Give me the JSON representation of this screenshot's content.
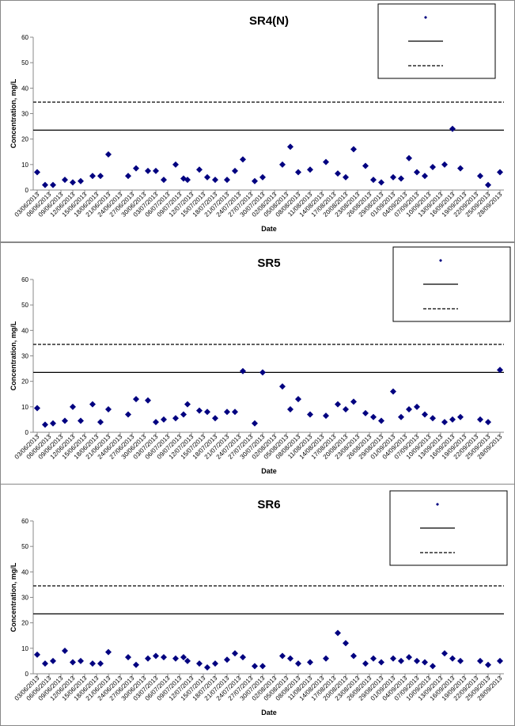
{
  "chart_data": [
    {
      "type": "scatter",
      "title": "SR4(N)",
      "x_label": "Date",
      "y_label": "Concentration, mg/L",
      "color": "#000080",
      "xlim": [
        "02/06/2013",
        "29/09/2013"
      ],
      "ylim": [
        0,
        60
      ],
      "yticks": [
        0,
        10,
        20,
        30,
        40,
        50,
        60
      ],
      "xticks": [
        "03/06/2013",
        "06/06/2013",
        "09/06/2013",
        "12/06/2013",
        "15/06/2013",
        "18/06/2013",
        "21/06/2013",
        "24/06/2013",
        "27/06/2013",
        "30/06/2013",
        "03/07/2013",
        "06/07/2013",
        "09/07/2013",
        "12/07/2013",
        "15/07/2013",
        "18/07/2013",
        "21/07/2013",
        "24/07/2013",
        "27/07/2013",
        "30/07/2013",
        "02/08/2013",
        "05/08/2013",
        "08/08/2013",
        "11/08/2013",
        "14/08/2013",
        "17/08/2013",
        "20/08/2013",
        "23/08/2013",
        "26/08/2013",
        "29/08/2013",
        "01/09/2013",
        "04/09/2013",
        "07/09/2013",
        "10/09/2013",
        "13/09/2013",
        "16/09/2013",
        "19/09/2013",
        "22/09/2013",
        "25/09/2013",
        "28/09/2013"
      ],
      "reference_lines": [
        {
          "value": 23.5,
          "style": "solid"
        },
        {
          "value": 34.5,
          "style": "dashed"
        }
      ],
      "x": [
        "03/06/2013",
        "05/06/2013",
        "07/06/2013",
        "10/06/2013",
        "12/06/2013",
        "14/06/2013",
        "17/06/2013",
        "19/06/2013",
        "21/06/2013",
        "26/06/2013",
        "28/06/2013",
        "01/07/2013",
        "03/07/2013",
        "05/07/2013",
        "08/07/2013",
        "10/07/2013",
        "11/07/2013",
        "14/07/2013",
        "16/07/2013",
        "18/07/2013",
        "21/07/2013",
        "23/07/2013",
        "25/07/2013",
        "28/07/2013",
        "30/07/2013",
        "04/08/2013",
        "06/08/2013",
        "08/08/2013",
        "11/08/2013",
        "15/08/2013",
        "18/08/2013",
        "20/08/2013",
        "22/08/2013",
        "25/08/2013",
        "27/08/2013",
        "29/08/2013",
        "01/09/2013",
        "03/09/2013",
        "05/09/2013",
        "07/09/2013",
        "09/09/2013",
        "11/09/2013",
        "14/09/2013",
        "16/09/2013",
        "18/09/2013",
        "23/09/2013",
        "25/09/2013",
        "28/09/2013"
      ],
      "values": [
        7,
        2,
        2,
        4,
        3,
        3.5,
        5.5,
        5.5,
        14,
        5.5,
        8.5,
        7.5,
        7.5,
        4,
        10,
        4.5,
        4,
        8,
        5,
        4,
        4,
        7.5,
        12,
        3.5,
        5,
        10,
        17,
        7,
        8,
        11,
        6.5,
        5,
        16,
        9.5,
        4,
        3,
        5,
        4.5,
        12.5,
        7,
        5.5,
        9,
        10,
        24,
        8.5,
        5.5,
        2,
        7
      ]
    },
    {
      "type": "scatter",
      "title": "SR5",
      "x_label": "Date",
      "y_label": "Concentration, mg/L",
      "color": "#000080",
      "xlim": [
        "02/06/2013",
        "29/09/2013"
      ],
      "ylim": [
        0,
        60
      ],
      "yticks": [
        0,
        10,
        20,
        30,
        40,
        50,
        60
      ],
      "xticks": [
        "03/06/2013",
        "06/06/2013",
        "09/06/2013",
        "12/06/2013",
        "15/06/2013",
        "18/06/2013",
        "21/06/2013",
        "24/06/2013",
        "27/06/2013",
        "30/06/2013",
        "03/07/2013",
        "06/07/2013",
        "09/07/2013",
        "12/07/2013",
        "15/07/2013",
        "18/07/2013",
        "21/07/2013",
        "24/07/2013",
        "27/07/2013",
        "30/07/2013",
        "02/08/2013",
        "05/08/2013",
        "08/08/2013",
        "11/08/2013",
        "14/08/2013",
        "17/08/2013",
        "20/08/2013",
        "23/08/2013",
        "26/08/2013",
        "29/08/2013",
        "01/09/2013",
        "04/09/2013",
        "07/09/2013",
        "10/09/2013",
        "13/09/2013",
        "16/09/2013",
        "19/09/2013",
        "22/09/2013",
        "25/09/2013",
        "28/09/2013"
      ],
      "reference_lines": [
        {
          "value": 23.5,
          "style": "solid"
        },
        {
          "value": 34.5,
          "style": "dashed"
        }
      ],
      "x": [
        "03/06/2013",
        "05/06/2013",
        "07/06/2013",
        "10/06/2013",
        "12/06/2013",
        "14/06/2013",
        "17/06/2013",
        "19/06/2013",
        "21/06/2013",
        "26/06/2013",
        "28/06/2013",
        "01/07/2013",
        "03/07/2013",
        "05/07/2013",
        "08/07/2013",
        "10/07/2013",
        "11/07/2013",
        "14/07/2013",
        "16/07/2013",
        "18/07/2013",
        "21/07/2013",
        "23/07/2013",
        "25/07/2013",
        "28/07/2013",
        "30/07/2013",
        "04/08/2013",
        "06/08/2013",
        "08/08/2013",
        "11/08/2013",
        "15/08/2013",
        "18/08/2013",
        "20/08/2013",
        "22/08/2013",
        "25/08/2013",
        "27/08/2013",
        "29/08/2013",
        "01/09/2013",
        "03/09/2013",
        "05/09/2013",
        "07/09/2013",
        "09/09/2013",
        "11/09/2013",
        "14/09/2013",
        "16/09/2013",
        "18/09/2013",
        "23/09/2013",
        "25/09/2013",
        "28/09/2013"
      ],
      "values": [
        9.5,
        3,
        3.5,
        4.5,
        10,
        4.5,
        11,
        4,
        9,
        7,
        13,
        12.5,
        4,
        5,
        5.5,
        7,
        11,
        8.5,
        8,
        5.5,
        8,
        8,
        24,
        3.5,
        23.5,
        18,
        9,
        13,
        7,
        6.5,
        11,
        9,
        12,
        7.5,
        6,
        4.5,
        16,
        6,
        9,
        10,
        7,
        5.5,
        4,
        5,
        6,
        5,
        4,
        24.5
      ]
    },
    {
      "type": "scatter",
      "title": "SR6",
      "x_label": "Date",
      "y_label": "Concentration, mg/L",
      "color": "#000080",
      "xlim": [
        "02/06/2013",
        "29/09/2013"
      ],
      "ylim": [
        0,
        60
      ],
      "yticks": [
        0,
        10,
        20,
        30,
        40,
        50,
        60
      ],
      "xticks": [
        "03/06/2013",
        "06/06/2013",
        "09/06/2013",
        "12/06/2013",
        "15/06/2013",
        "18/06/2013",
        "21/06/2013",
        "24/06/2013",
        "27/06/2013",
        "30/06/2013",
        "03/07/2013",
        "06/07/2013",
        "09/07/2013",
        "12/07/2013",
        "15/07/2013",
        "18/07/2013",
        "21/07/2013",
        "24/07/2013",
        "27/07/2013",
        "30/07/2013",
        "02/08/2013",
        "05/08/2013",
        "08/08/2013",
        "11/08/2013",
        "14/08/2013",
        "17/08/2013",
        "20/08/2013",
        "23/08/2013",
        "26/08/2013",
        "29/08/2013",
        "01/09/2013",
        "04/09/2013",
        "07/09/2013",
        "10/09/2013",
        "13/09/2013",
        "16/09/2013",
        "19/09/2013",
        "22/09/2013",
        "25/09/2013",
        "28/09/2013"
      ],
      "reference_lines": [
        {
          "value": 23.5,
          "style": "solid"
        },
        {
          "value": 34.5,
          "style": "dashed"
        }
      ],
      "x": [
        "03/06/2013",
        "05/06/2013",
        "07/06/2013",
        "10/06/2013",
        "12/06/2013",
        "14/06/2013",
        "17/06/2013",
        "19/06/2013",
        "21/06/2013",
        "26/06/2013",
        "28/06/2013",
        "01/07/2013",
        "03/07/2013",
        "05/07/2013",
        "08/07/2013",
        "10/07/2013",
        "11/07/2013",
        "14/07/2013",
        "16/07/2013",
        "18/07/2013",
        "21/07/2013",
        "23/07/2013",
        "25/07/2013",
        "28/07/2013",
        "30/07/2013",
        "04/08/2013",
        "06/08/2013",
        "08/08/2013",
        "11/08/2013",
        "15/08/2013",
        "18/08/2013",
        "20/08/2013",
        "22/08/2013",
        "25/08/2013",
        "27/08/2013",
        "29/08/2013",
        "01/09/2013",
        "03/09/2013",
        "05/09/2013",
        "07/09/2013",
        "09/09/2013",
        "11/09/2013",
        "14/09/2013",
        "16/09/2013",
        "18/09/2013",
        "23/09/2013",
        "25/09/2013",
        "28/09/2013"
      ],
      "values": [
        7.5,
        4,
        5,
        9,
        4.5,
        5,
        4,
        4,
        8.5,
        6.5,
        3.5,
        6,
        7,
        6.5,
        6,
        6.5,
        5,
        4,
        2.5,
        4,
        5.5,
        8,
        6.5,
        3,
        3,
        7,
        6,
        4,
        4.5,
        6,
        16,
        12,
        7,
        4,
        6,
        4.5,
        6,
        5,
        6.5,
        5,
        4.5,
        3,
        8,
        6,
        5,
        5,
        3.5,
        5
      ]
    }
  ]
}
